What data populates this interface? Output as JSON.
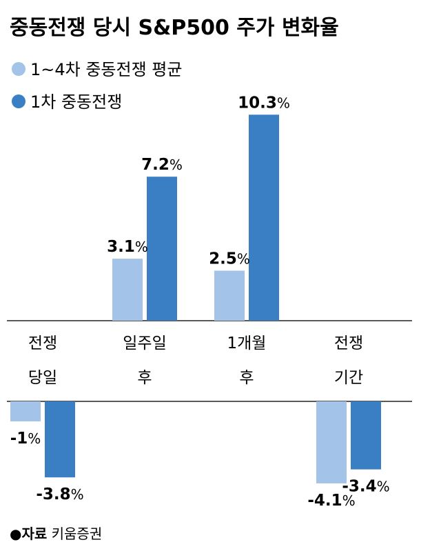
{
  "title": "중동전쟁 당시 S&P500 주가 변화율",
  "source": {
    "label": "●자료",
    "text": " 키움증권"
  },
  "colors": {
    "series1": "#a3c3e8",
    "series2": "#3a7fc4"
  },
  "chart_data": {
    "type": "bar",
    "title": "중동전쟁 당시 S&P500 주가 변화율",
    "categories": [
      [
        "전쟁",
        "당일"
      ],
      [
        "일주일",
        "후"
      ],
      [
        "1개월",
        "후"
      ],
      [
        "전쟁",
        "기간"
      ]
    ],
    "series": [
      {
        "name": "1~4차 중동전쟁 평균",
        "values": [
          -1,
          3.1,
          2.5,
          -4.1
        ],
        "labels": [
          "-1",
          "3.1",
          "2.5",
          "-4.1"
        ]
      },
      {
        "name": "1차 중동전쟁",
        "values": [
          -3.8,
          7.2,
          10.3,
          -3.4
        ],
        "labels": [
          "-3.8",
          "7.2",
          "10.3",
          "-3.4"
        ]
      }
    ],
    "unit": "%",
    "legend": "top-left",
    "grid": false
  }
}
